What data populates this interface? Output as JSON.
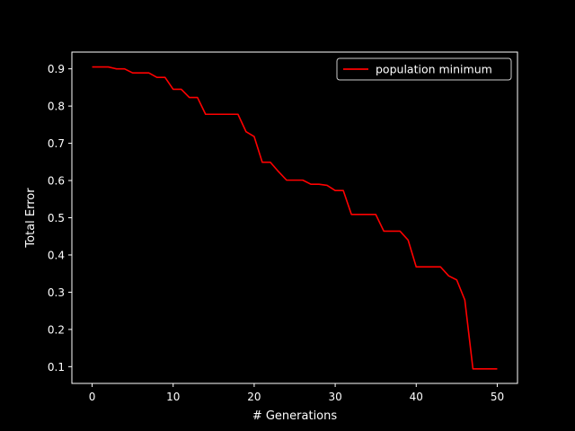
{
  "chart_data": {
    "type": "line",
    "title": "",
    "xlabel": "# Generations",
    "ylabel": "Total Error",
    "xlim": [
      -2.5,
      52.5
    ],
    "ylim": [
      0.055,
      0.945
    ],
    "xticks": [
      0,
      10,
      20,
      30,
      40,
      50
    ],
    "yticks": [
      0.1,
      0.2,
      0.3,
      0.4,
      0.5,
      0.6,
      0.7,
      0.8,
      0.9
    ],
    "grid": false,
    "legend_position": "top-right",
    "background": "#000000",
    "foreground": "#ffffff",
    "series": [
      {
        "name": "population minimum",
        "color": "#ff0000",
        "x": [
          0,
          1,
          2,
          3,
          4,
          5,
          6,
          7,
          8,
          9,
          10,
          11,
          12,
          13,
          14,
          15,
          16,
          17,
          18,
          19,
          20,
          21,
          22,
          23,
          24,
          25,
          26,
          27,
          28,
          29,
          30,
          31,
          32,
          33,
          34,
          35,
          36,
          37,
          38,
          39,
          40,
          41,
          42,
          43,
          44,
          45,
          46,
          47,
          48,
          49,
          50
        ],
        "y": [
          0.905,
          0.905,
          0.905,
          0.9,
          0.9,
          0.889,
          0.889,
          0.889,
          0.877,
          0.877,
          0.845,
          0.845,
          0.823,
          0.823,
          0.778,
          0.778,
          0.778,
          0.778,
          0.778,
          0.731,
          0.718,
          0.649,
          0.649,
          0.624,
          0.601,
          0.601,
          0.601,
          0.59,
          0.59,
          0.587,
          0.573,
          0.573,
          0.509,
          0.509,
          0.509,
          0.509,
          0.464,
          0.464,
          0.464,
          0.44,
          0.368,
          0.368,
          0.368,
          0.368,
          0.344,
          0.333,
          0.279,
          0.094,
          0.094,
          0.094,
          0.094
        ]
      }
    ]
  }
}
